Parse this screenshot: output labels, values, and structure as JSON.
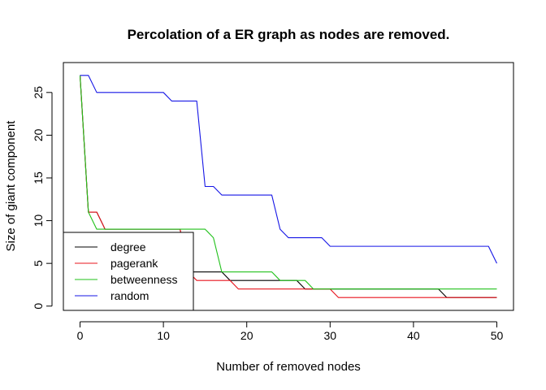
{
  "chart_data": {
    "type": "line",
    "title": "Percolation of a ER graph as nodes are removed.",
    "xlabel": "Number of removed nodes",
    "ylabel": "Size of giant component",
    "xlim": [
      -2,
      52
    ],
    "ylim": [
      -0.5,
      28.5
    ],
    "xticks": [
      0,
      10,
      20,
      30,
      40,
      50
    ],
    "yticks": [
      0,
      5,
      10,
      15,
      20,
      25
    ],
    "grid": false,
    "legend_position": "bottom-left",
    "series": [
      {
        "name": "degree",
        "color": "#000000",
        "points": [
          [
            0,
            27
          ],
          [
            1,
            11
          ],
          [
            2,
            11
          ],
          [
            3,
            9
          ],
          [
            4,
            9
          ],
          [
            5,
            9
          ],
          [
            6,
            9
          ],
          [
            7,
            9
          ],
          [
            8,
            9
          ],
          [
            9,
            9
          ],
          [
            10,
            9
          ],
          [
            11,
            9
          ],
          [
            12,
            9
          ],
          [
            13,
            4
          ],
          [
            14,
            4
          ],
          [
            15,
            4
          ],
          [
            16,
            4
          ],
          [
            17,
            4
          ],
          [
            18,
            3
          ],
          [
            19,
            3
          ],
          [
            20,
            3
          ],
          [
            21,
            3
          ],
          [
            22,
            3
          ],
          [
            23,
            3
          ],
          [
            24,
            3
          ],
          [
            25,
            3
          ],
          [
            26,
            3
          ],
          [
            27,
            2
          ],
          [
            28,
            2
          ],
          [
            29,
            2
          ],
          [
            30,
            2
          ],
          [
            31,
            2
          ],
          [
            32,
            2
          ],
          [
            33,
            2
          ],
          [
            34,
            2
          ],
          [
            35,
            2
          ],
          [
            36,
            2
          ],
          [
            37,
            2
          ],
          [
            38,
            2
          ],
          [
            39,
            2
          ],
          [
            40,
            2
          ],
          [
            41,
            2
          ],
          [
            42,
            2
          ],
          [
            43,
            2
          ],
          [
            44,
            1
          ],
          [
            45,
            1
          ],
          [
            46,
            1
          ],
          [
            47,
            1
          ],
          [
            48,
            1
          ],
          [
            49,
            1
          ],
          [
            50,
            1
          ]
        ]
      },
      {
        "name": "pagerank",
        "color": "#e8141d",
        "points": [
          [
            0,
            27
          ],
          [
            1,
            11
          ],
          [
            2,
            11
          ],
          [
            3,
            9
          ],
          [
            4,
            9
          ],
          [
            5,
            9
          ],
          [
            6,
            9
          ],
          [
            7,
            9
          ],
          [
            8,
            9
          ],
          [
            9,
            9
          ],
          [
            10,
            9
          ],
          [
            11,
            9
          ],
          [
            12,
            9
          ],
          [
            13,
            4
          ],
          [
            14,
            3
          ],
          [
            15,
            3
          ],
          [
            16,
            3
          ],
          [
            17,
            3
          ],
          [
            18,
            3
          ],
          [
            19,
            2
          ],
          [
            20,
            2
          ],
          [
            21,
            2
          ],
          [
            22,
            2
          ],
          [
            23,
            2
          ],
          [
            24,
            2
          ],
          [
            25,
            2
          ],
          [
            26,
            2
          ],
          [
            27,
            2
          ],
          [
            28,
            2
          ],
          [
            29,
            2
          ],
          [
            30,
            2
          ],
          [
            31,
            1
          ],
          [
            32,
            1
          ],
          [
            33,
            1
          ],
          [
            34,
            1
          ],
          [
            35,
            1
          ],
          [
            36,
            1
          ],
          [
            37,
            1
          ],
          [
            38,
            1
          ],
          [
            39,
            1
          ],
          [
            40,
            1
          ],
          [
            41,
            1
          ],
          [
            42,
            1
          ],
          [
            43,
            1
          ],
          [
            44,
            1
          ],
          [
            45,
            1
          ],
          [
            46,
            1
          ],
          [
            47,
            1
          ],
          [
            48,
            1
          ],
          [
            49,
            1
          ],
          [
            50,
            1
          ]
        ]
      },
      {
        "name": "betweenness",
        "color": "#20c11a",
        "points": [
          [
            0,
            27
          ],
          [
            1,
            11
          ],
          [
            2,
            9
          ],
          [
            3,
            9
          ],
          [
            4,
            9
          ],
          [
            5,
            9
          ],
          [
            6,
            9
          ],
          [
            7,
            9
          ],
          [
            8,
            9
          ],
          [
            9,
            9
          ],
          [
            10,
            9
          ],
          [
            11,
            9
          ],
          [
            12,
            9
          ],
          [
            13,
            9
          ],
          [
            14,
            9
          ],
          [
            15,
            9
          ],
          [
            16,
            8
          ],
          [
            17,
            4
          ],
          [
            18,
            4
          ],
          [
            19,
            4
          ],
          [
            20,
            4
          ],
          [
            21,
            4
          ],
          [
            22,
            4
          ],
          [
            23,
            4
          ],
          [
            24,
            3
          ],
          [
            25,
            3
          ],
          [
            26,
            3
          ],
          [
            27,
            3
          ],
          [
            28,
            2
          ],
          [
            29,
            2
          ],
          [
            30,
            2
          ],
          [
            31,
            2
          ],
          [
            32,
            2
          ],
          [
            33,
            2
          ],
          [
            34,
            2
          ],
          [
            35,
            2
          ],
          [
            36,
            2
          ],
          [
            37,
            2
          ],
          [
            38,
            2
          ],
          [
            39,
            2
          ],
          [
            40,
            2
          ],
          [
            41,
            2
          ],
          [
            42,
            2
          ],
          [
            43,
            2
          ],
          [
            44,
            2
          ],
          [
            45,
            2
          ],
          [
            46,
            2
          ],
          [
            47,
            2
          ],
          [
            48,
            2
          ],
          [
            49,
            2
          ],
          [
            50,
            2
          ]
        ]
      },
      {
        "name": "random",
        "color": "#1515e6",
        "points": [
          [
            0,
            27
          ],
          [
            1,
            27
          ],
          [
            2,
            25
          ],
          [
            3,
            25
          ],
          [
            4,
            25
          ],
          [
            5,
            25
          ],
          [
            6,
            25
          ],
          [
            7,
            25
          ],
          [
            8,
            25
          ],
          [
            9,
            25
          ],
          [
            10,
            25
          ],
          [
            11,
            24
          ],
          [
            12,
            24
          ],
          [
            13,
            24
          ],
          [
            14,
            24
          ],
          [
            15,
            14
          ],
          [
            16,
            14
          ],
          [
            17,
            13
          ],
          [
            18,
            13
          ],
          [
            19,
            13
          ],
          [
            20,
            13
          ],
          [
            21,
            13
          ],
          [
            22,
            13
          ],
          [
            23,
            13
          ],
          [
            24,
            9
          ],
          [
            25,
            8
          ],
          [
            26,
            8
          ],
          [
            27,
            8
          ],
          [
            28,
            8
          ],
          [
            29,
            8
          ],
          [
            30,
            7
          ],
          [
            31,
            7
          ],
          [
            32,
            7
          ],
          [
            33,
            7
          ],
          [
            34,
            7
          ],
          [
            35,
            7
          ],
          [
            36,
            7
          ],
          [
            37,
            7
          ],
          [
            38,
            7
          ],
          [
            39,
            7
          ],
          [
            40,
            7
          ],
          [
            41,
            7
          ],
          [
            42,
            7
          ],
          [
            43,
            7
          ],
          [
            44,
            7
          ],
          [
            45,
            7
          ],
          [
            46,
            7
          ],
          [
            47,
            7
          ],
          [
            48,
            7
          ],
          [
            49,
            7
          ],
          [
            50,
            5
          ]
        ]
      }
    ]
  }
}
